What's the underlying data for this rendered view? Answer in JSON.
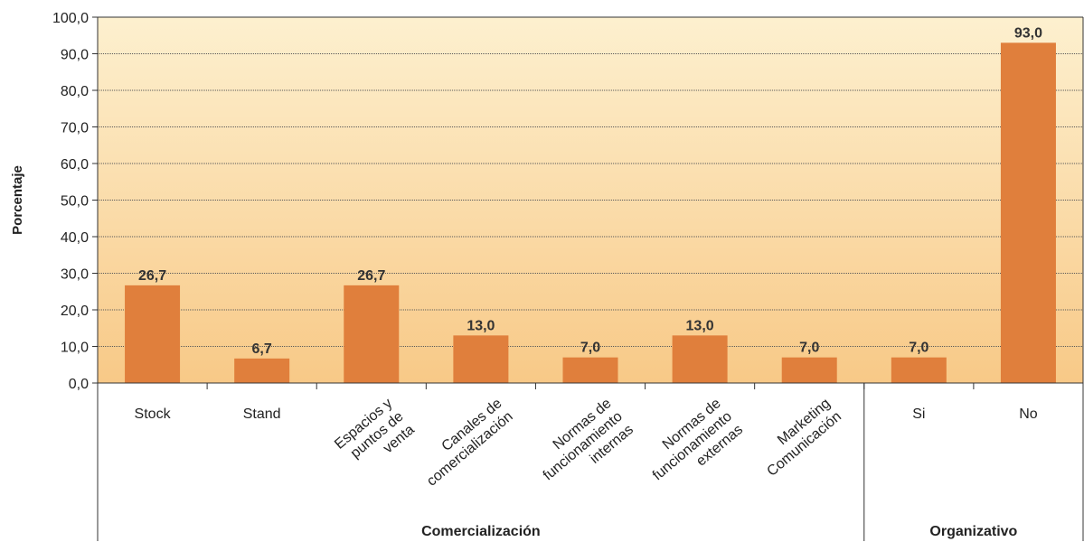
{
  "chart_data": {
    "type": "bar",
    "ylabel": "Porcentaje",
    "ylim": [
      0,
      100
    ],
    "yticks": [
      "0,0",
      "10,0",
      "20,0",
      "30,0",
      "40,0",
      "50,0",
      "60,0",
      "70,0",
      "80,0",
      "90,0",
      "100,0"
    ],
    "categories": [
      [
        "Stock"
      ],
      [
        "Stand"
      ],
      [
        "Espacios y",
        "puntos de",
        "venta"
      ],
      [
        "Canales de",
        "comercialización"
      ],
      [
        "Normas de",
        "funcionamiento",
        "internas"
      ],
      [
        "Normas de",
        "funcionamiento",
        "externas"
      ],
      [
        "Marketing",
        "Comunicación"
      ],
      [
        "Si"
      ],
      [
        "No"
      ]
    ],
    "values": [
      26.7,
      6.7,
      26.7,
      13.0,
      7.0,
      13.0,
      7.0,
      7.0,
      93.0
    ],
    "value_labels": [
      "26,7",
      "6,7",
      "26,7",
      "13,0",
      "7,0",
      "13,0",
      "7,0",
      "7,0",
      "93,0"
    ],
    "groups": [
      {
        "label": "Comercialización",
        "span": [
          0,
          6
        ]
      },
      {
        "label": "Organizativo",
        "span": [
          7,
          8
        ]
      }
    ],
    "grid": true,
    "colors": {
      "bar": "#E07F3C",
      "background_top": "#FDF0CF",
      "background_bottom": "#F8C987",
      "grid": "#5a5a5a",
      "axis": "#333333"
    }
  }
}
